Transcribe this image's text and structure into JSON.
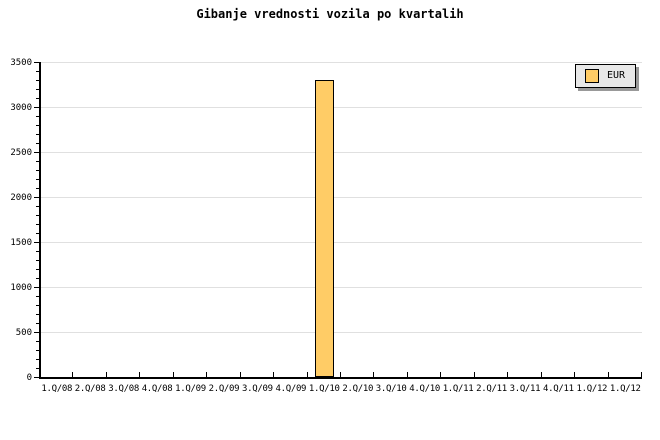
{
  "chart_data": {
    "type": "bar",
    "title": "Gibanje vrednosti vozila po kvartalih",
    "categories": [
      "1.Q/08",
      "2.Q/08",
      "3.Q/08",
      "4.Q/08",
      "1.Q/09",
      "2.Q/09",
      "3.Q/09",
      "4.Q/09",
      "1.Q/10",
      "2.Q/10",
      "3.Q/10",
      "4.Q/10",
      "1.Q/11",
      "2.Q/11",
      "3.Q/11",
      "4.Q/11",
      "1.Q/12",
      "1.Q/12"
    ],
    "series": [
      {
        "name": "EUR",
        "values": [
          null,
          null,
          null,
          null,
          null,
          null,
          null,
          null,
          3300,
          null,
          null,
          null,
          null,
          null,
          null,
          null,
          null,
          null
        ]
      }
    ],
    "xlabel": "",
    "ylabel": "",
    "ylim": [
      0,
      3500
    ],
    "y_ticks": [
      0,
      500,
      1000,
      1500,
      2000,
      2500,
      3000,
      3500
    ],
    "y_minor_step": 100,
    "grid": "horizontal-major",
    "legend": {
      "position": "top-right",
      "entries": [
        "EUR"
      ]
    },
    "colors": {
      "bar_fill": "#FFCC66",
      "bar_border": "#000000",
      "grid": "#E0E0E0",
      "axis": "#000000",
      "text": "#000000",
      "background": "#FFFFFF",
      "legend_bg": "#E8E8E8",
      "legend_shadow": "#999999"
    }
  }
}
